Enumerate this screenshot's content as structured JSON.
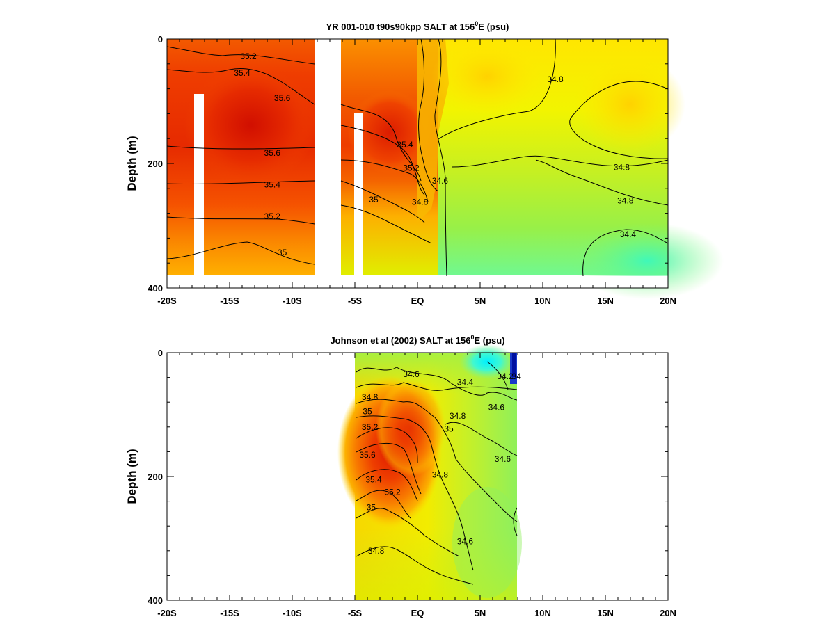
{
  "chart_data": [
    {
      "type": "heatmap",
      "title": "YR 001-010 t90s90kpp SALT at 156",
      "title_sup": "0",
      "title_tail": "E (psu)",
      "ylabel": "Depth (m)",
      "x_ticks": [
        "-20S",
        "-15S",
        "-10S",
        "-5S",
        "EQ",
        "5N",
        "10N",
        "15N",
        "20N"
      ],
      "y_ticks": [
        "0",
        "200",
        "400"
      ],
      "xlim": [
        -20,
        20
      ],
      "ylim": [
        0,
        400
      ],
      "contour_labels": [
        {
          "text": "35.2",
          "lat": -13.5,
          "depth": 28
        },
        {
          "text": "35.4",
          "lat": -14.0,
          "depth": 55
        },
        {
          "text": "35.6",
          "lat": -10.8,
          "depth": 95
        },
        {
          "text": "35.6",
          "lat": -11.6,
          "depth": 183
        },
        {
          "text": "35.4",
          "lat": -11.6,
          "depth": 234
        },
        {
          "text": "35.2",
          "lat": -11.6,
          "depth": 285
        },
        {
          "text": "35",
          "lat": -10.8,
          "depth": 343
        },
        {
          "text": "35.4",
          "lat": -1.0,
          "depth": 170
        },
        {
          "text": "35.2",
          "lat": -0.5,
          "depth": 207
        },
        {
          "text": "34.6",
          "lat": 1.8,
          "depth": 228
        },
        {
          "text": "35",
          "lat": -3.5,
          "depth": 258
        },
        {
          "text": "34.8",
          "lat": 0.2,
          "depth": 262
        },
        {
          "text": "34.8",
          "lat": 11.0,
          "depth": 65
        },
        {
          "text": "34.8",
          "lat": 16.3,
          "depth": 206
        },
        {
          "text": "34.8",
          "lat": 16.6,
          "depth": 260
        },
        {
          "text": "34.4",
          "lat": 16.8,
          "depth": 314
        }
      ]
    },
    {
      "type": "heatmap",
      "title": "Johnson et al (2002) SALT at 156",
      "title_sup": "0",
      "title_tail": "E (psu)",
      "ylabel": "Depth (m)",
      "x_ticks": [
        "-20S",
        "-15S",
        "-10S",
        "-5S",
        "EQ",
        "5N",
        "10N",
        "15N",
        "20N"
      ],
      "y_ticks": [
        "0",
        "200",
        "400"
      ],
      "xlim": [
        -20,
        20
      ],
      "ylim": [
        0,
        400
      ],
      "data_extent": [
        -5,
        8
      ],
      "contour_labels": [
        {
          "text": "34.6",
          "lat": -0.5,
          "depth": 35
        },
        {
          "text": "34.4",
          "lat": 3.8,
          "depth": 48
        },
        {
          "text": "34.2",
          "lat": 7.0,
          "depth": 38
        },
        {
          "text": "34",
          "lat": 7.9,
          "depth": 38
        },
        {
          "text": "34.8",
          "lat": -3.8,
          "depth": 72
        },
        {
          "text": "35",
          "lat": -4.0,
          "depth": 95
        },
        {
          "text": "34.6",
          "lat": 6.3,
          "depth": 88
        },
        {
          "text": "34.8",
          "lat": 3.2,
          "depth": 102
        },
        {
          "text": "35.2",
          "lat": -3.8,
          "depth": 120
        },
        {
          "text": "35",
          "lat": 2.5,
          "depth": 123
        },
        {
          "text": "35.6",
          "lat": -4.0,
          "depth": 165
        },
        {
          "text": "34.6",
          "lat": 6.8,
          "depth": 172
        },
        {
          "text": "34.8",
          "lat": 1.8,
          "depth": 197
        },
        {
          "text": "35.4",
          "lat": -3.5,
          "depth": 205
        },
        {
          "text": "35.2",
          "lat": -2.0,
          "depth": 225
        },
        {
          "text": "35",
          "lat": -3.7,
          "depth": 250
        },
        {
          "text": "34.6",
          "lat": 3.8,
          "depth": 305
        },
        {
          "text": "34.8",
          "lat": -3.3,
          "depth": 320
        }
      ]
    }
  ]
}
